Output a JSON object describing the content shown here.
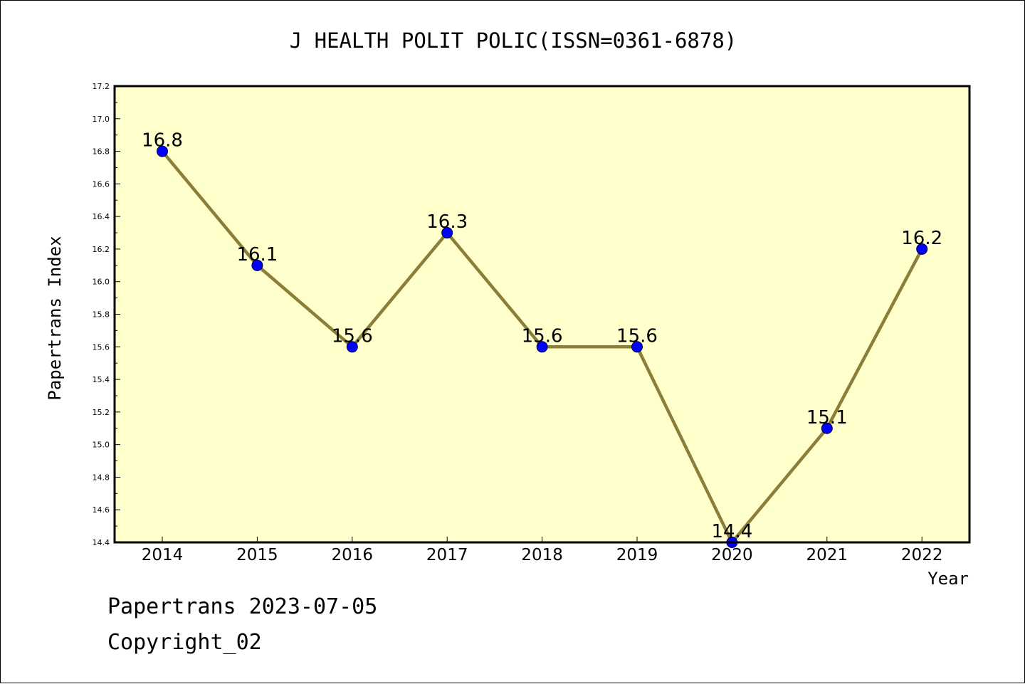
{
  "chart_data": {
    "type": "line",
    "title": "J HEALTH POLIT POLIC(ISSN=0361-6878)",
    "xlabel": "Year",
    "ylabel": "Papertrans Index",
    "categories": [
      "2014",
      "2015",
      "2016",
      "2017",
      "2018",
      "2019",
      "2020",
      "2021",
      "2022"
    ],
    "series": [
      {
        "values": [
          16.8,
          16.1,
          15.6,
          16.3,
          15.6,
          15.6,
          14.4,
          15.1,
          16.2
        ]
      }
    ],
    "data_labels": [
      "16.8",
      "16.1",
      "15.6",
      "16.3",
      "15.6",
      "15.6",
      "14.4",
      "15.1",
      "16.2"
    ],
    "ylim": [
      14.4,
      17.2
    ],
    "yticks": [
      "14.4",
      "14.6",
      "14.8",
      "15.0",
      "15.2",
      "15.4",
      "15.6",
      "15.8",
      "16.0",
      "16.2",
      "16.4",
      "16.6",
      "16.8",
      "17.0",
      "17.2"
    ],
    "grid": false,
    "legend": "none",
    "colors": {
      "plot_background": "#ffffcc",
      "line": "#8b7d3a",
      "marker": "#0000ff"
    }
  },
  "footer": {
    "date_line": "Papertrans 2023-07-05",
    "copyright_line": "Copyright_02"
  }
}
